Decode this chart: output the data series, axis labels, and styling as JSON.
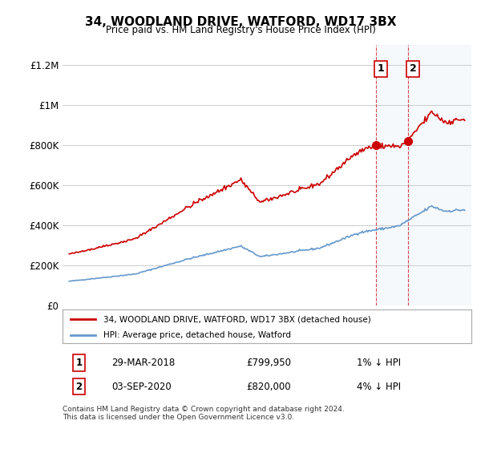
{
  "title": "34, WOODLAND DRIVE, WATFORD, WD17 3BX",
  "subtitle": "Price paid vs. HM Land Registry's House Price Index (HPI)",
  "xlabel": "",
  "ylabel": "",
  "ylim": [
    0,
    1300000
  ],
  "yticks": [
    0,
    200000,
    400000,
    600000,
    800000,
    1000000,
    1200000
  ],
  "ytick_labels": [
    "£0",
    "£200K",
    "£400K",
    "£600K",
    "£800K",
    "£1M",
    "£1.2M"
  ],
  "start_year": 1995,
  "end_year": 2025,
  "hpi_color": "#6699cc",
  "price_color": "#cc0000",
  "fill_color": "#c8d8f0",
  "marker_color": "#cc0000",
  "background_color": "#ffffff",
  "grid_color": "#cccccc",
  "sale1_year": 2018.24,
  "sale1_price": 799950,
  "sale2_year": 2020.67,
  "sale2_price": 820000,
  "sale1_label": "29-MAR-2018",
  "sale1_price_str": "£799,950",
  "sale1_note": "1% ↓ HPI",
  "sale2_label": "03-SEP-2020",
  "sale2_price_str": "£820,000",
  "sale2_note": "4% ↓ HPI",
  "legend1": "34, WOODLAND DRIVE, WATFORD, WD17 3BX (detached house)",
  "legend2": "HPI: Average price, detached house, Watford",
  "footer": "Contains HM Land Registry data © Crown copyright and database right 2024.\nThis data is licensed under the Open Government Licence v3.0.",
  "vline_color": "#cc0000",
  "box_color": "#cc0000"
}
